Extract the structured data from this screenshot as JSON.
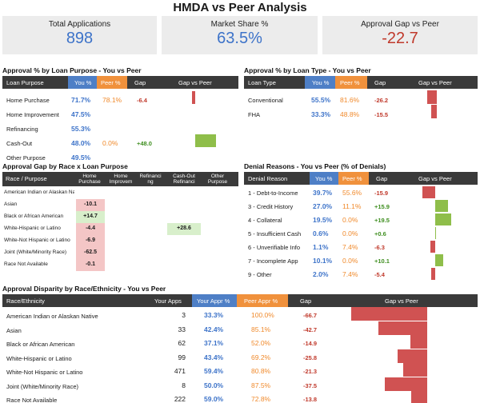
{
  "title": "HMDA vs Peer Analysis",
  "kpis": {
    "apps": {
      "label": "Total Applications",
      "value": "898",
      "color": "#3d73c9"
    },
    "share": {
      "label": "Market Share %",
      "value": "63.5%",
      "color": "#3d73c9"
    },
    "gap": {
      "label": "Approval Gap vs Peer",
      "value": "-22.7",
      "color": "#c0392b"
    }
  },
  "purpose": {
    "title": "Approval % by Loan Purpose - You vs Peer",
    "headers": [
      "Loan Purpose",
      "You %",
      "Peer %",
      "Gap",
      "Gap vs Peer"
    ],
    "rows": [
      {
        "name": "Home Purchase",
        "you": "71.7%",
        "peer": "78.1%",
        "gap": "-6.4",
        "gapv": -6.4
      },
      {
        "name": "Home Improvement",
        "you": "47.5%",
        "peer": "",
        "gap": "",
        "gapv": 0
      },
      {
        "name": "Refinancing",
        "you": "55.3%",
        "peer": "",
        "gap": "",
        "gapv": 0
      },
      {
        "name": "Cash-Out",
        "you": "48.0%",
        "peer": "0.0%",
        "gap": "+48.0",
        "gapv": 48.0
      },
      {
        "name": "Other Purpose",
        "you": "49.5%",
        "peer": "",
        "gap": "",
        "gapv": 0
      }
    ]
  },
  "type": {
    "title": "Approval % by Loan Type - You vs Peer",
    "headers": [
      "Loan Type",
      "You %",
      "Peer %",
      "Gap",
      "Gap vs Peer"
    ],
    "rows": [
      {
        "name": "Conventional",
        "you": "55.5%",
        "peer": "81.6%",
        "gap": "-26.2",
        "gapv": -26.2
      },
      {
        "name": "FHA",
        "you": "33.3%",
        "peer": "48.8%",
        "gap": "-15.5",
        "gapv": -15.5
      }
    ]
  },
  "matrix": {
    "title": "Approval Gap by Race x Loan Purpose",
    "headers": [
      "Race / Purpose",
      "Home Purchase",
      "Home Improvem",
      "Refinanci ng",
      "Cash-Out Refinanci",
      "Other Purpose"
    ],
    "rows": [
      {
        "name": "American Indian or Alaskan Native",
        "cells": [
          "",
          "",
          "",
          "",
          ""
        ],
        "vals": [
          0,
          0,
          0,
          0,
          0
        ]
      },
      {
        "name": "Asian",
        "cells": [
          "-10.1",
          "",
          "",
          "",
          ""
        ],
        "vals": [
          -10.1,
          0,
          0,
          0,
          0
        ]
      },
      {
        "name": "Black or African American",
        "cells": [
          "+14.7",
          "",
          "",
          "",
          ""
        ],
        "vals": [
          14.7,
          0,
          0,
          0,
          0
        ]
      },
      {
        "name": "White-Hispanic or Latino",
        "cells": [
          "-4.4",
          "",
          "",
          "+28.6",
          ""
        ],
        "vals": [
          -4.4,
          0,
          0,
          28.6,
          0
        ]
      },
      {
        "name": "White-Not Hispanic or Latino",
        "cells": [
          "-6.9",
          "",
          "",
          "",
          ""
        ],
        "vals": [
          -6.9,
          0,
          0,
          0,
          0
        ]
      },
      {
        "name": "Joint (White/Minority Race)",
        "cells": [
          "-62.5",
          "",
          "",
          "",
          ""
        ],
        "vals": [
          -62.5,
          0,
          0,
          0,
          0
        ]
      },
      {
        "name": "Race Not Available",
        "cells": [
          "-0.1",
          "",
          "",
          "",
          ""
        ],
        "vals": [
          -0.1,
          0,
          0,
          0,
          0
        ]
      }
    ]
  },
  "denial": {
    "title": "Denial Reasons - You vs Peer (% of Denials)",
    "headers": [
      "Denial Reason",
      "You %",
      "Peer %",
      "Gap",
      "Gap vs Peer"
    ],
    "rows": [
      {
        "name": "1 - Debt-to-Income",
        "you": "39.7%",
        "peer": "55.6%",
        "gap": "-15.9",
        "gapv": -15.9
      },
      {
        "name": "3 - Credit History",
        "you": "27.0%",
        "peer": "11.1%",
        "gap": "+15.9",
        "gapv": 15.9
      },
      {
        "name": "4 - Collateral",
        "you": "19.5%",
        "peer": "0.0%",
        "gap": "+19.5",
        "gapv": 19.5
      },
      {
        "name": "5 - Insufficient Cash",
        "you": "0.6%",
        "peer": "0.0%",
        "gap": "+0.6",
        "gapv": 0.6
      },
      {
        "name": "6 - Unverifiable Info",
        "you": "1.1%",
        "peer": "7.4%",
        "gap": "-6.3",
        "gapv": -6.3
      },
      {
        "name": "7 - Incomplete App",
        "you": "10.1%",
        "peer": "0.0%",
        "gap": "+10.1",
        "gapv": 10.1
      },
      {
        "name": "9 - Other",
        "you": "2.0%",
        "peer": "7.4%",
        "gap": "-5.4",
        "gapv": -5.4
      }
    ]
  },
  "race": {
    "title": "Approval Disparity by Race/Ethnicity - You vs Peer",
    "headers": [
      "Race/Ethnicity",
      "Your Apps",
      "Your Appr %",
      "Peer Appr %",
      "Gap",
      "Gap vs Peer"
    ],
    "rows": [
      {
        "name": "American Indian or Alaskan Native",
        "apps": "3",
        "you": "33.3%",
        "peer": "100.0%",
        "gap": "-66.7",
        "gapv": -66.7
      },
      {
        "name": "Asian",
        "apps": "33",
        "you": "42.4%",
        "peer": "85.1%",
        "gap": "-42.7",
        "gapv": -42.7
      },
      {
        "name": "Black or African American",
        "apps": "62",
        "you": "37.1%",
        "peer": "52.0%",
        "gap": "-14.9",
        "gapv": -14.9
      },
      {
        "name": "White-Hispanic or Latino",
        "apps": "99",
        "you": "43.4%",
        "peer": "69.2%",
        "gap": "-25.8",
        "gapv": -25.8
      },
      {
        "name": "White-Not Hispanic or Latino",
        "apps": "471",
        "you": "59.4%",
        "peer": "80.8%",
        "gap": "-21.3",
        "gapv": -21.3
      },
      {
        "name": "Joint (White/Minority Race)",
        "apps": "8",
        "you": "50.0%",
        "peer": "87.5%",
        "gap": "-37.5",
        "gapv": -37.5
      },
      {
        "name": "Race Not Available",
        "apps": "222",
        "you": "59.0%",
        "peer": "72.8%",
        "gap": "-13.8",
        "gapv": -13.8
      }
    ]
  }
}
